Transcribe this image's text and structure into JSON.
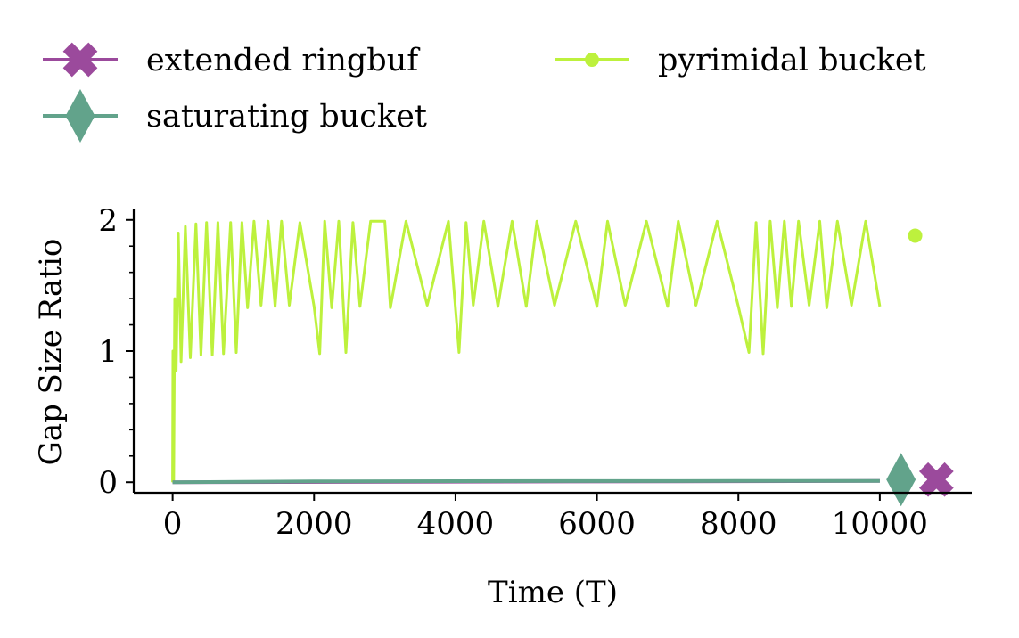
{
  "colors": {
    "extended_ringbuf": "#9b4a9c",
    "saturating_bucket": "#62a38b",
    "pyrimidal_bucket": "#bdf13d"
  },
  "chart_data": {
    "type": "line",
    "title": "",
    "xlabel": "Time (T)",
    "ylabel": "Gap Size Ratio",
    "xlim": [
      -550,
      11300
    ],
    "ylim": [
      -0.08,
      2.08
    ],
    "xticks": [
      0,
      2000,
      4000,
      6000,
      8000,
      10000
    ],
    "xtick_labels": [
      "0",
      "2000",
      "4000",
      "6000",
      "8000",
      "10000"
    ],
    "yticks": [
      0,
      1,
      2
    ],
    "ytick_labels": [
      "0",
      "1",
      "2"
    ],
    "grid": false,
    "legend_position": "top",
    "series": [
      {
        "name": "extended ringbuf",
        "marker": "X",
        "color_key": "extended_ringbuf",
        "x": [
          0,
          10000
        ],
        "y": [
          0.0,
          0.01
        ],
        "summary_point": [
          10800,
          0.02
        ]
      },
      {
        "name": "saturating bucket",
        "marker": "diamond",
        "color_key": "saturating_bucket",
        "x": [
          0,
          1000,
          2000,
          4000,
          6000,
          8000,
          10000
        ],
        "y": [
          0.0,
          0.003,
          0.006,
          0.008,
          0.009,
          0.01,
          0.01
        ],
        "summary_point": [
          10300,
          0.02
        ]
      },
      {
        "name": "pyrimidal bucket",
        "marker": "point",
        "color_key": "pyrimidal_bucket",
        "x": [
          0,
          5,
          15,
          30,
          50,
          80,
          120,
          180,
          250,
          330,
          400,
          480,
          560,
          640,
          720,
          820,
          900,
          980,
          1060,
          1150,
          1250,
          1350,
          1450,
          1540,
          1650,
          1800,
          2000,
          2080,
          2150,
          2250,
          2350,
          2450,
          2550,
          2650,
          2800,
          3000,
          3080,
          3300,
          3600,
          3900,
          4050,
          4150,
          4250,
          4400,
          4600,
          4800,
          5000,
          5150,
          5400,
          5700,
          6000,
          6150,
          6400,
          6700,
          7000,
          7150,
          7400,
          7700,
          8000,
          8150,
          8250,
          8350,
          8450,
          8550,
          8650,
          8750,
          8850,
          9000,
          9150,
          9250,
          9400,
          9600,
          9800,
          10000
        ],
        "y": [
          0.0,
          1.0,
          0.0,
          1.4,
          0.85,
          1.9,
          0.92,
          1.95,
          0.95,
          1.97,
          0.97,
          1.98,
          0.97,
          1.98,
          0.98,
          1.98,
          0.99,
          1.98,
          1.33,
          1.99,
          1.35,
          1.99,
          1.34,
          1.99,
          1.35,
          1.98,
          1.34,
          0.98,
          1.99,
          1.33,
          1.99,
          0.99,
          1.98,
          1.34,
          1.99,
          1.99,
          1.33,
          1.99,
          1.35,
          1.99,
          0.99,
          1.98,
          1.35,
          1.99,
          1.34,
          1.99,
          1.34,
          1.99,
          1.35,
          1.99,
          1.34,
          1.99,
          1.35,
          1.99,
          1.34,
          1.99,
          1.35,
          1.99,
          1.34,
          0.99,
          1.98,
          0.98,
          1.99,
          1.33,
          1.99,
          1.34,
          1.99,
          1.35,
          1.99,
          1.33,
          1.99,
          1.35,
          1.99,
          1.34
        ],
        "summary_point": [
          10500,
          1.88
        ]
      }
    ]
  }
}
